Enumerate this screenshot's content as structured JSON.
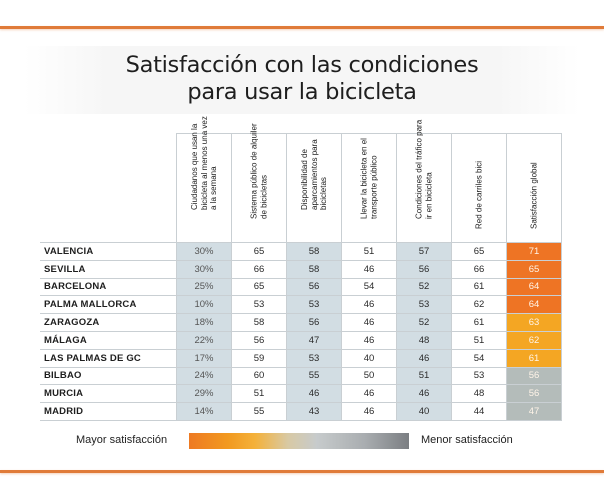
{
  "title": {
    "line1": "Satisfacción con las condiciones",
    "line2": "para usar la bicicleta"
  },
  "colors": {
    "accent_rule": "#e07b39",
    "shade_column": "#d2dde3",
    "scale_high": "#ee7a22",
    "scale_mid_high": "#f4a623",
    "scale_low": "#b4bcba"
  },
  "chart_data": {
    "type": "table",
    "title": "Satisfacción con las condiciones para usar la bicicleta",
    "columns": [
      "Ciudadanos que usan la bicicleta al menos una vez a la semana",
      "Sistema público de alquiler de bicicletas",
      "Disponibilidad de aparcamientos para bicicletas",
      "Llevar la bicicleta en el transporte público",
      "Condiciones del tráfico para ir en bicicleta",
      "Red de carriles bici",
      "Satisfacción global"
    ],
    "rows": [
      {
        "city": "VALENCIA",
        "values": [
          "30%",
          "65",
          "58",
          "51",
          "57",
          "65",
          "71"
        ],
        "global_color": "#ee7424"
      },
      {
        "city": "SEVILLA",
        "values": [
          "30%",
          "66",
          "58",
          "46",
          "56",
          "66",
          "65"
        ],
        "global_color": "#ee7424"
      },
      {
        "city": "BARCELONA",
        "values": [
          "25%",
          "65",
          "56",
          "54",
          "52",
          "61",
          "64"
        ],
        "global_color": "#ee7424"
      },
      {
        "city": "PALMA MALLORCA",
        "values": [
          "10%",
          "53",
          "53",
          "46",
          "53",
          "62",
          "64"
        ],
        "global_color": "#ee7424"
      },
      {
        "city": "ZARAGOZA",
        "values": [
          "18%",
          "58",
          "56",
          "46",
          "52",
          "61",
          "63"
        ],
        "global_color": "#f4a623"
      },
      {
        "city": "MÁLAGA",
        "values": [
          "22%",
          "56",
          "47",
          "46",
          "48",
          "51",
          "62"
        ],
        "global_color": "#f4a623"
      },
      {
        "city": "LAS PALMAS DE GC",
        "values": [
          "17%",
          "59",
          "53",
          "40",
          "46",
          "54",
          "61"
        ],
        "global_color": "#f4a623"
      },
      {
        "city": "BILBAO",
        "values": [
          "24%",
          "60",
          "55",
          "50",
          "51",
          "53",
          "56"
        ],
        "global_color": "#b4bcba"
      },
      {
        "city": "MURCIA",
        "values": [
          "29%",
          "51",
          "46",
          "46",
          "46",
          "48",
          "56"
        ],
        "global_color": "#b4bcba"
      },
      {
        "city": "MADRID",
        "values": [
          "14%",
          "55",
          "43",
          "46",
          "40",
          "44",
          "47"
        ],
        "global_color": "#b4bcba"
      }
    ],
    "legend": {
      "high_label": "Mayor satisfacción",
      "low_label": "Menor satisfacción",
      "gradient": [
        "#ee7a22",
        "#f4b13a",
        "#c7cbcc",
        "#7b7e82"
      ]
    }
  }
}
